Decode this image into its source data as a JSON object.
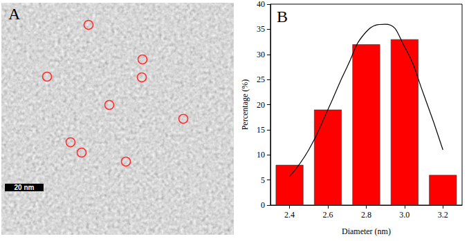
{
  "image": {
    "label": "A",
    "scale_bar": "20 nm"
  },
  "chart_data": {
    "type": "bar",
    "annotations": [
      "B"
    ],
    "xlabel": "Diameter (nm)",
    "ylabel": "Percentage (%)",
    "xlim": [
      2.3,
      3.3
    ],
    "xticks": [
      2.4,
      2.6,
      2.8,
      {
        "value": 3,
        "label": "3.0"
      },
      3.2
    ],
    "ylim": [
      0,
      40
    ],
    "yticks": [
      0,
      5,
      10,
      15,
      20,
      25,
      30,
      35,
      40
    ],
    "grid": false,
    "series": [
      {
        "type": "bar",
        "color": "#ff0000",
        "x": [
          2.4,
          2.6,
          2.8,
          3.0,
          3.2
        ],
        "values": [
          8,
          19,
          32,
          33,
          6
        ]
      },
      {
        "type": "line",
        "color": "#000000",
        "x": [
          2.4,
          2.5,
          2.6,
          2.7,
          2.8,
          2.9,
          3.0,
          3.1,
          3.2
        ],
        "values": [
          5.7,
          11,
          19,
          27.5,
          34.5,
          36,
          31.5,
          22,
          11
        ]
      }
    ]
  }
}
